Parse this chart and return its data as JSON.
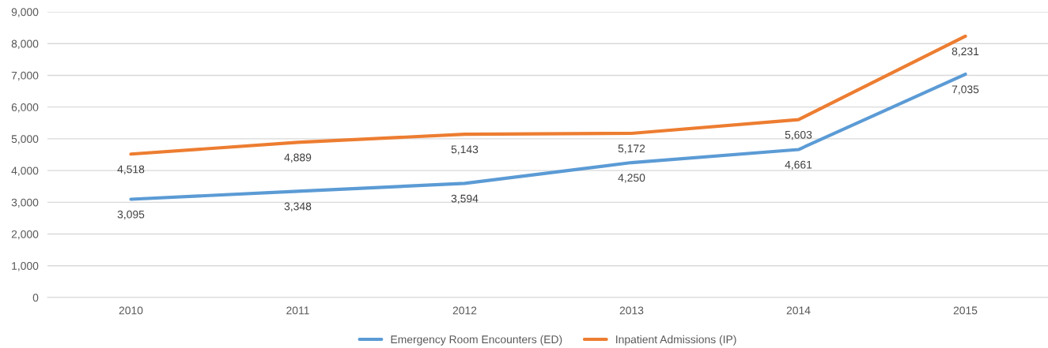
{
  "chart_data": {
    "type": "line",
    "categories": [
      "2010",
      "2011",
      "2012",
      "2013",
      "2014",
      "2015"
    ],
    "series": [
      {
        "name": "Emergency Room Encounters (ED)",
        "color": "#5b9bd5",
        "values": [
          3095,
          3348,
          3594,
          4250,
          4661,
          7035
        ],
        "value_labels": [
          "3,095",
          "3,348",
          "3,594",
          "4,250",
          "4,661",
          "7,035"
        ]
      },
      {
        "name": "Inpatient Admissions (IP)",
        "color": "#ed7d31",
        "values": [
          4518,
          4889,
          5143,
          5172,
          5603,
          8231
        ],
        "value_labels": [
          "4,518",
          "4,889",
          "5,143",
          "5,172",
          "5,603",
          "8,231"
        ]
      }
    ],
    "ylim": [
      0,
      9000
    ],
    "yticks": [
      0,
      {
        "value": 1000,
        "label": "1,000"
      },
      {
        "value": 2000,
        "label": "2,000"
      },
      {
        "value": 3000,
        "label": "3,000"
      },
      {
        "value": 4000,
        "label": "4,000"
      },
      {
        "value": 5000,
        "label": "5,000"
      },
      {
        "value": 6000,
        "label": "6,000"
      },
      {
        "value": 7000,
        "label": "7,000"
      },
      {
        "value": 8000,
        "label": "8,000"
      },
      {
        "value": 9000,
        "label": "9,000"
      }
    ],
    "grid": "y",
    "legend": "bottom",
    "marker": "none",
    "line_style": "solid"
  }
}
